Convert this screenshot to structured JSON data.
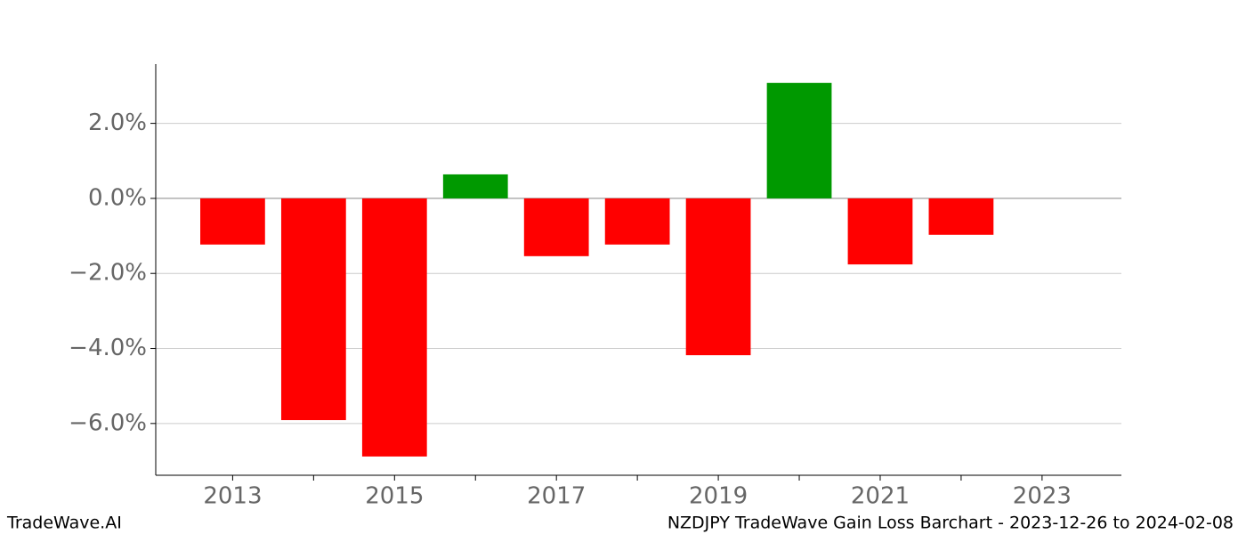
{
  "chart_data": {
    "type": "bar",
    "x": [
      2013,
      2014,
      2015,
      2016,
      2017,
      2018,
      2019,
      2020,
      2021,
      2022
    ],
    "values": [
      -1.23,
      -5.91,
      -6.88,
      0.64,
      -1.54,
      -1.23,
      -4.18,
      3.08,
      -1.76,
      -0.97
    ],
    "positive_color": "#009900",
    "negative_color": "#ff0000",
    "bar_width": 0.8,
    "xlim": [
      2012.05,
      2023.98
    ],
    "xticks": [
      2013,
      2015,
      2017,
      2019,
      2021,
      2023
    ],
    "xminor_ticks": [
      2014,
      2016,
      2018,
      2020,
      2022
    ],
    "ylim": [
      -7.38,
      3.58
    ],
    "yticks": [
      {
        "value": 2,
        "label": "2.0%"
      },
      {
        "value": 0,
        "label": "0.0%"
      },
      {
        "value": -2,
        "label": "−2.0%"
      },
      {
        "value": -4,
        "label": "−4.0%"
      },
      {
        "value": -6,
        "label": "−6.0%"
      }
    ],
    "grid": true
  },
  "footer": {
    "left": "TradeWave.AI",
    "right": "NZDJPY TradeWave Gain Loss Barchart - 2023-12-26 to 2024-02-08"
  }
}
